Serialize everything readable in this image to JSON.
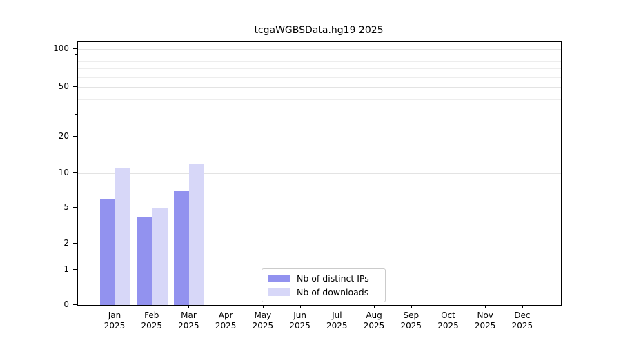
{
  "chart_data": {
    "type": "bar",
    "title": "tcgaWGBSData.hg19 2025",
    "year": "2025",
    "categories": [
      "Jan",
      "Feb",
      "Mar",
      "Apr",
      "May",
      "Jun",
      "Jul",
      "Aug",
      "Sep",
      "Oct",
      "Nov",
      "Dec"
    ],
    "series": [
      {
        "name": "Nb of distinct IPs",
        "color": "#9292ef",
        "values": [
          6,
          4,
          7,
          0,
          0,
          0,
          0,
          0,
          0,
          0,
          0,
          0
        ]
      },
      {
        "name": "Nb of downloads",
        "color": "#d7d7f8",
        "values": [
          11,
          5,
          12,
          0,
          0,
          0,
          0,
          0,
          0,
          0,
          0,
          0
        ]
      }
    ],
    "y_axis": {
      "ticks": [
        0,
        1,
        2,
        5,
        10,
        20,
        50,
        100
      ],
      "minor_ticks": [
        30,
        40,
        60,
        70,
        80,
        90
      ],
      "scale": "log-like",
      "ylim": [
        0,
        110
      ]
    },
    "legend": {
      "position": "lower center",
      "entries": [
        "Nb of distinct IPs",
        "Nb of downloads"
      ]
    },
    "grid": true,
    "background": "#ffffff"
  }
}
